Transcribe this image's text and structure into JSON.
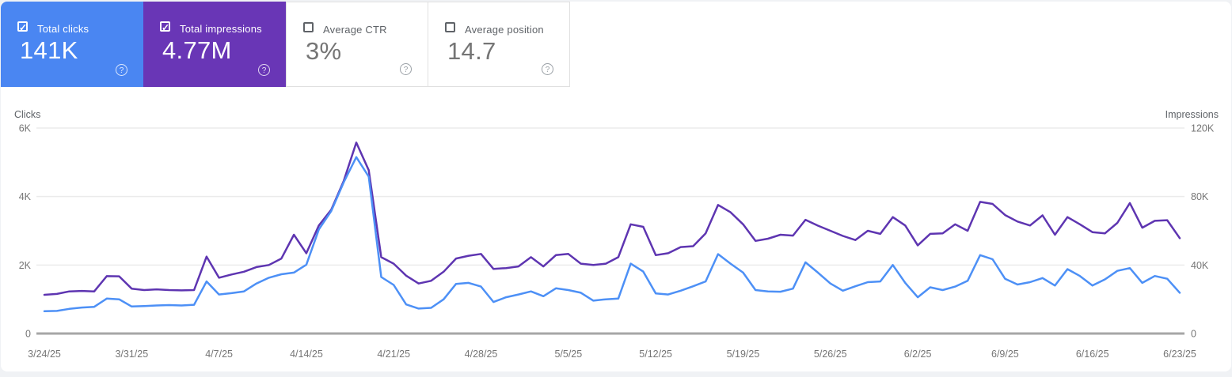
{
  "colors": {
    "page_bg": "#f0f2f5",
    "panel_bg": "#ffffff",
    "clicks_card_bg": "#4a86f2",
    "impressions_card_bg": "#6936b6",
    "clicks_line": "#4d90f6",
    "impressions_line": "#5e35b1",
    "grid_line": "#ebebeb",
    "zero_axis_line": "#a6a6a6",
    "axis_text": "#757575",
    "label_text": "#5f6368"
  },
  "icons": {
    "check_glyph": "✓",
    "help_glyph": "?"
  },
  "metric_cards": [
    {
      "id": "total-clicks",
      "label": "Total clicks",
      "value": "141K",
      "selected": true,
      "bg": "#4a86f2"
    },
    {
      "id": "total-impressions",
      "label": "Total impressions",
      "value": "4.77M",
      "selected": true,
      "bg": "#6936b6"
    },
    {
      "id": "average-ctr",
      "label": "Average CTR",
      "value": "3%",
      "selected": false,
      "bg": "#ffffff"
    },
    {
      "id": "average-position",
      "label": "Average position",
      "value": "14.7",
      "selected": false,
      "bg": "#ffffff"
    }
  ],
  "chart_data": {
    "type": "line",
    "n_points": 92,
    "points_per_x_tick": 7,
    "x_tick_labels": [
      "3/24/25",
      "3/31/25",
      "4/7/25",
      "4/14/25",
      "4/21/25",
      "4/28/25",
      "5/5/25",
      "5/12/25",
      "5/19/25",
      "5/26/25",
      "6/2/25",
      "6/9/25",
      "6/16/25",
      "6/23/25"
    ],
    "left_axis": {
      "title": "Clicks",
      "tick_values": [
        0,
        2000,
        4000,
        6000
      ],
      "tick_labels": [
        "0",
        "2K",
        "4K",
        "6K"
      ],
      "max": 6000
    },
    "right_axis": {
      "title": "Impressions",
      "tick_values": [
        0,
        40000,
        80000,
        120000
      ],
      "tick_labels": [
        "0",
        "40K",
        "80K",
        "120K"
      ],
      "max": 120000
    },
    "grid": true,
    "legend_position": "none",
    "series": [
      {
        "name": "Clicks",
        "axis": "left",
        "color": "#4d90f6",
        "values": [
          650,
          660,
          720,
          760,
          780,
          1020,
          1000,
          790,
          800,
          820,
          830,
          820,
          840,
          1520,
          1140,
          1180,
          1230,
          1460,
          1630,
          1730,
          1780,
          2010,
          3040,
          3580,
          4420,
          5150,
          4580,
          1650,
          1420,
          850,
          730,
          750,
          1000,
          1450,
          1480,
          1370,
          920,
          1060,
          1140,
          1230,
          1090,
          1320,
          1270,
          1190,
          960,
          1000,
          1020,
          2040,
          1810,
          1170,
          1140,
          1250,
          1380,
          1520,
          2320,
          2040,
          1780,
          1270,
          1230,
          1220,
          1310,
          2080,
          1780,
          1460,
          1250,
          1380,
          1500,
          1520,
          2000,
          1480,
          1060,
          1350,
          1270,
          1370,
          1540,
          2290,
          2170,
          1600,
          1430,
          1500,
          1620,
          1400,
          1880,
          1680,
          1400,
          1580,
          1830,
          1910,
          1480,
          1680,
          1600,
          1190
        ]
      },
      {
        "name": "Impressions",
        "axis": "right",
        "color": "#5e35b1",
        "values": [
          22600,
          23100,
          24600,
          24900,
          24600,
          33500,
          33400,
          26200,
          25400,
          25800,
          25400,
          25200,
          25400,
          44900,
          32600,
          34500,
          36100,
          38800,
          40000,
          43800,
          57700,
          46900,
          63100,
          72300,
          89200,
          111500,
          95400,
          44600,
          40800,
          33800,
          29200,
          30800,
          36100,
          43800,
          45400,
          46500,
          37700,
          38200,
          39200,
          44600,
          39200,
          45800,
          46500,
          40800,
          40000,
          40800,
          44600,
          63800,
          62300,
          45800,
          46900,
          50500,
          51000,
          58500,
          75100,
          70800,
          63800,
          54100,
          55400,
          57700,
          57200,
          66400,
          63000,
          60000,
          57000,
          54600,
          60000,
          58200,
          68000,
          63100,
          51500,
          58200,
          58500,
          63800,
          60000,
          76900,
          75700,
          69200,
          65400,
          63100,
          69000,
          57700,
          68000,
          63800,
          59200,
          58500,
          64600,
          76200,
          61800,
          65800,
          66200,
          55700
        ]
      }
    ]
  }
}
